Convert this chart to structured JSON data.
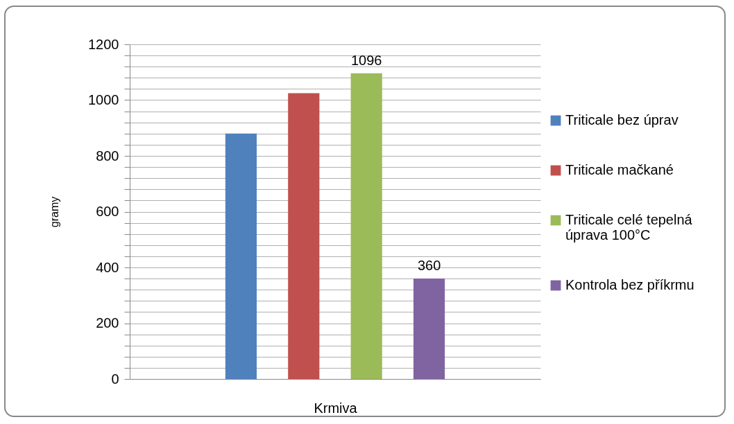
{
  "chart_data": {
    "type": "bar",
    "xlabel": "Krmiva",
    "ylabel": "gramy",
    "categories": [
      null
    ],
    "series": [
      {
        "name": "Triticale bez úprav",
        "color": "#4f81bd",
        "values": [
          880
        ]
      },
      {
        "name": "Triticale mačkané",
        "color": "#c0504d",
        "values": [
          1025
        ]
      },
      {
        "name": "Triticale celé tepelná úprava 100°C",
        "color": "#9bbb59",
        "values": [
          1096
        ],
        "value_labels": [
          "1096"
        ]
      },
      {
        "name": "Kontrola bez příkrmu",
        "color": "#8064a2",
        "values": [
          360
        ],
        "value_labels": [
          "360"
        ]
      }
    ],
    "ylim": [
      0,
      1200
    ],
    "yticks": [
      0,
      {
        "value": 40,
        "label": null
      },
      {
        "value": 80,
        "label": null
      },
      {
        "value": 120,
        "label": null
      },
      {
        "value": 160,
        "label": null
      },
      200,
      {
        "value": 240,
        "label": null
      },
      {
        "value": 280,
        "label": null
      },
      {
        "value": 320,
        "label": null
      },
      {
        "value": 360,
        "label": null
      },
      400,
      {
        "value": 440,
        "label": null
      },
      {
        "value": 480,
        "label": null
      },
      {
        "value": 520,
        "label": null
      },
      {
        "value": 560,
        "label": null
      },
      600,
      {
        "value": 640,
        "label": null
      },
      {
        "value": 680,
        "label": null
      },
      {
        "value": 720,
        "label": null
      },
      {
        "value": 760,
        "label": null
      },
      800,
      {
        "value": 840,
        "label": null
      },
      {
        "value": 880,
        "label": null
      },
      {
        "value": 920,
        "label": null
      },
      {
        "value": 960,
        "label": null
      },
      1000,
      {
        "value": 1040,
        "label": null
      },
      {
        "value": 1080,
        "label": null
      },
      {
        "value": 1120,
        "label": null
      },
      {
        "value": 1160,
        "label": null
      },
      1200
    ],
    "grid": true,
    "legend": "right"
  }
}
